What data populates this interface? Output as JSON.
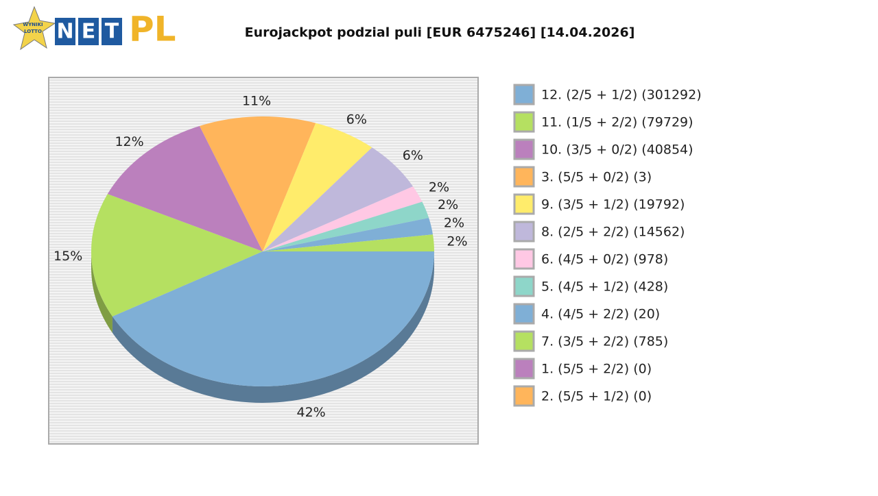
{
  "logo": {
    "badge": [
      "WYNIKI",
      "LOTTO"
    ],
    "letters": [
      "N",
      "E",
      "T"
    ],
    "suffix": "PL"
  },
  "chart_data": {
    "type": "pie",
    "title": "Eurojackpot podzial puli [EUR 6475246] [14.04.2026]",
    "categories": [
      "12. (2/5 + 1/2) (301292)",
      "11. (1/5 + 2/2) (79729)",
      "10. (3/5 + 0/2) (40854)",
      "3. (5/5 + 0/2) (3)",
      "9. (3/5 + 1/2) (19792)",
      "8. (2/5 + 2/2) (14562)",
      "6. (4/5 + 0/2) (978)",
      "5. (4/5 + 1/2) (428)",
      "4. (4/5 + 2/2) (20)",
      "7. (3/5 + 2/2) (785)",
      "1. (5/5 + 2/2) (0)",
      "2. (5/5 + 1/2) (0)"
    ],
    "values": [
      42,
      15,
      12,
      11,
      6,
      6,
      2,
      2,
      2,
      2,
      0,
      0
    ],
    "value_labels": [
      "42%",
      "15%",
      "12%",
      "11%",
      "6%",
      "6%",
      "2%",
      "2%",
      "2%",
      "2%",
      null,
      null
    ],
    "colors": [
      "#7fafd6",
      "#b5e061",
      "#bb80bd",
      "#ffb55b",
      "#ffec6b",
      "#bfb8db",
      "#ffc8e4",
      "#8ed6c9",
      "#7fafd6",
      "#b5e061",
      "#bb80bd",
      "#ffb55b"
    ],
    "legend": "right"
  }
}
